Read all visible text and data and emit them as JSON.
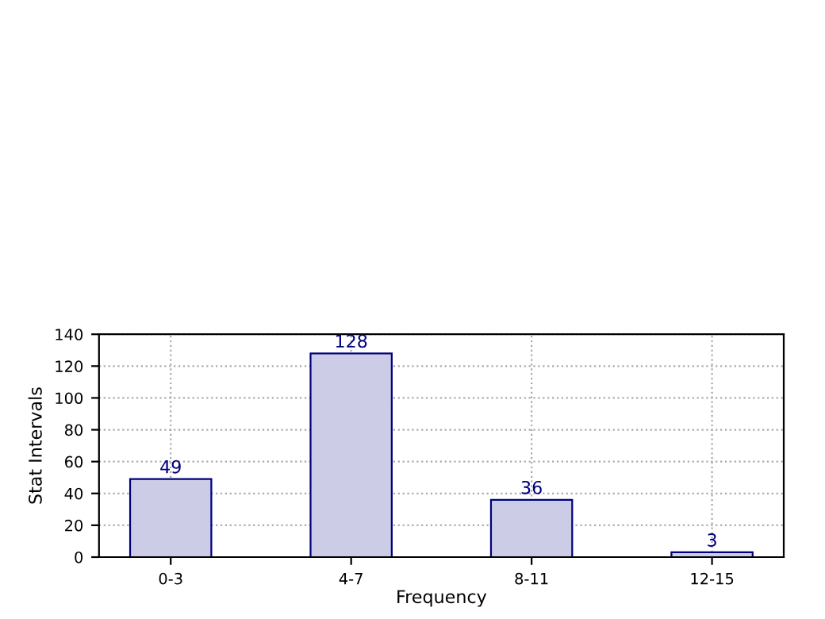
{
  "chart_data": {
    "type": "bar",
    "xlabel": "Frequency",
    "ylabel": "Stat Intervals",
    "categories": [
      "0-3",
      "4-7",
      "8-11",
      "12-15"
    ],
    "values": [
      49,
      128,
      36,
      3
    ],
    "color": "#ccccE6",
    "ylim": [
      0,
      140
    ],
    "yticks": [
      0,
      20,
      40,
      60,
      80,
      100,
      120,
      140
    ],
    "grid": true,
    "data_labels": true
  }
}
